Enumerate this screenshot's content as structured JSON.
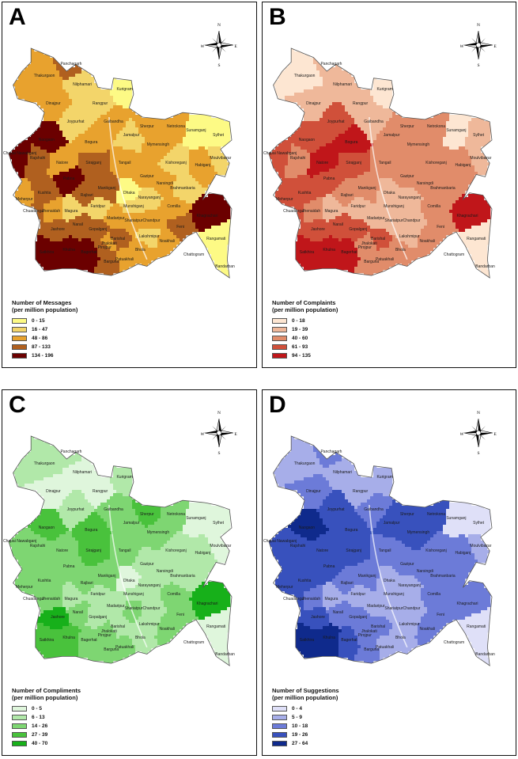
{
  "compass": {
    "north": "N",
    "south": "S",
    "east": "E",
    "west": "W"
  },
  "districts": [
    {
      "name": "Panchagarh",
      "fx": 0.28,
      "fy": 0.07
    },
    {
      "name": "Thakurgaon",
      "fx": 0.16,
      "fy": 0.12
    },
    {
      "name": "Nilphamari",
      "fx": 0.33,
      "fy": 0.16
    },
    {
      "name": "Dinajpur",
      "fx": 0.2,
      "fy": 0.24
    },
    {
      "name": "Rangpur",
      "fx": 0.41,
      "fy": 0.24
    },
    {
      "name": "Kurigram",
      "fx": 0.52,
      "fy": 0.18
    },
    {
      "name": "Gaibandha",
      "fx": 0.47,
      "fy": 0.32
    },
    {
      "name": "Joypurhat",
      "fx": 0.3,
      "fy": 0.32
    },
    {
      "name": "Naogaon",
      "fx": 0.17,
      "fy": 0.4
    },
    {
      "name": "Bogura",
      "fx": 0.37,
      "fy": 0.41
    },
    {
      "name": "Jamalpur",
      "fx": 0.55,
      "fy": 0.38
    },
    {
      "name": "Sherpur",
      "fx": 0.62,
      "fy": 0.34
    },
    {
      "name": "Netrokona",
      "fx": 0.75,
      "fy": 0.34
    },
    {
      "name": "Sunamganj",
      "fx": 0.84,
      "fy": 0.36
    },
    {
      "name": "Sylhet",
      "fx": 0.94,
      "fy": 0.38
    },
    {
      "name": "Mymensingh",
      "fx": 0.67,
      "fy": 0.42
    },
    {
      "name": "Chapai Nawabganj",
      "fx": 0.05,
      "fy": 0.46
    },
    {
      "name": "Rajshahi",
      "fx": 0.13,
      "fy": 0.48
    },
    {
      "name": "Natore",
      "fx": 0.24,
      "fy": 0.5
    },
    {
      "name": "Sirajganj",
      "fx": 0.38,
      "fy": 0.5
    },
    {
      "name": "Tangail",
      "fx": 0.52,
      "fy": 0.5
    },
    {
      "name": "Kishoreganj",
      "fx": 0.75,
      "fy": 0.5
    },
    {
      "name": "Habiganj",
      "fx": 0.87,
      "fy": 0.51
    },
    {
      "name": "Moulvibazar",
      "fx": 0.95,
      "fy": 0.48
    },
    {
      "name": "Pabna",
      "fx": 0.27,
      "fy": 0.57
    },
    {
      "name": "Gazipur",
      "fx": 0.62,
      "fy": 0.56
    },
    {
      "name": "Narsingdi",
      "fx": 0.7,
      "fy": 0.59
    },
    {
      "name": "Brahmanbaria",
      "fx": 0.78,
      "fy": 0.61
    },
    {
      "name": "Kushtia",
      "fx": 0.16,
      "fy": 0.63
    },
    {
      "name": "Manikganj",
      "fx": 0.44,
      "fy": 0.61
    },
    {
      "name": "Dhaka",
      "fx": 0.54,
      "fy": 0.63
    },
    {
      "name": "Narayanganj",
      "fx": 0.63,
      "fy": 0.65
    },
    {
      "name": "Meherpur",
      "fx": 0.07,
      "fy": 0.66
    },
    {
      "name": "Rajbari",
      "fx": 0.35,
      "fy": 0.64
    },
    {
      "name": "Faridpur",
      "fx": 0.4,
      "fy": 0.69
    },
    {
      "name": "Munshiganj",
      "fx": 0.56,
      "fy": 0.69
    },
    {
      "name": "Comilla",
      "fx": 0.74,
      "fy": 0.69
    },
    {
      "name": "Chuadanga",
      "fx": 0.11,
      "fy": 0.71
    },
    {
      "name": "Jhenaidah",
      "fx": 0.19,
      "fy": 0.71
    },
    {
      "name": "Magura",
      "fx": 0.28,
      "fy": 0.71
    },
    {
      "name": "Madaripur",
      "fx": 0.48,
      "fy": 0.74
    },
    {
      "name": "Shariatpur",
      "fx": 0.56,
      "fy": 0.75
    },
    {
      "name": "Chandpur",
      "fx": 0.64,
      "fy": 0.75
    },
    {
      "name": "Khagrachari",
      "fx": 0.89,
      "fy": 0.73
    },
    {
      "name": "Narail",
      "fx": 0.31,
      "fy": 0.77
    },
    {
      "name": "Gopalganj",
      "fx": 0.4,
      "fy": 0.79
    },
    {
      "name": "Jashore",
      "fx": 0.22,
      "fy": 0.79
    },
    {
      "name": "Lakshmipur",
      "fx": 0.63,
      "fy": 0.82
    },
    {
      "name": "Feni",
      "fx": 0.77,
      "fy": 0.78
    },
    {
      "name": "Noakhali",
      "fx": 0.71,
      "fy": 0.84
    },
    {
      "name": "Rangamati",
      "fx": 0.93,
      "fy": 0.83
    },
    {
      "name": "Satkhira",
      "fx": 0.17,
      "fy": 0.89
    },
    {
      "name": "Khulna",
      "fx": 0.27,
      "fy": 0.88
    },
    {
      "name": "Bagerhat",
      "fx": 0.36,
      "fy": 0.89
    },
    {
      "name": "Pirojpur",
      "fx": 0.43,
      "fy": 0.87
    },
    {
      "name": "Barishal",
      "fx": 0.49,
      "fy": 0.83
    },
    {
      "name": "Jhalokati",
      "fx": 0.45,
      "fy": 0.85
    },
    {
      "name": "Bhola",
      "fx": 0.59,
      "fy": 0.88
    },
    {
      "name": "Barguna",
      "fx": 0.46,
      "fy": 0.93
    },
    {
      "name": "Patuakhali",
      "fx": 0.52,
      "fy": 0.92
    },
    {
      "name": "Chattogram",
      "fx": 0.83,
      "fy": 0.9
    },
    {
      "name": "Bandarban",
      "fx": 0.97,
      "fy": 0.95
    }
  ],
  "panels": [
    {
      "id": "A",
      "legend_title_1": "Number of Messages",
      "legend_title_2": "(per million population)",
      "classes": [
        {
          "label": "0 - 15",
          "color": "#fdfa85"
        },
        {
          "label": "16 - 47",
          "color": "#f3d56a"
        },
        {
          "label": "48 - 86",
          "color": "#e8a22e"
        },
        {
          "label": "87 - 133",
          "color": "#b0601f"
        },
        {
          "label": "134 - 196",
          "color": "#6b0000"
        }
      ],
      "district_class": [
        3,
        2,
        1,
        2,
        1,
        0,
        2,
        1,
        4,
        2,
        1,
        2,
        2,
        0,
        0,
        2,
        4,
        3,
        2,
        3,
        2,
        1,
        2,
        1,
        4,
        2,
        2,
        1,
        3,
        3,
        0,
        1,
        2,
        3,
        1,
        1,
        2,
        3,
        2,
        1,
        2,
        2,
        2,
        4,
        3,
        3,
        3,
        1,
        3,
        2,
        0,
        4,
        4,
        4,
        3,
        3,
        2,
        2,
        3,
        2,
        1,
        0
      ]
    },
    {
      "id": "B",
      "legend_title_1": "Number of Complaints",
      "legend_title_2": "(per million population)",
      "classes": [
        {
          "label": "0 - 18",
          "color": "#fde6d2"
        },
        {
          "label": "19 - 39",
          "color": "#efb89a"
        },
        {
          "label": "40 - 60",
          "color": "#e18c6a"
        },
        {
          "label": "61 - 93",
          "color": "#d0503a"
        },
        {
          "label": "94 - 135",
          "color": "#c0161a"
        }
      ],
      "district_class": [
        1,
        0,
        1,
        1,
        1,
        0,
        1,
        3,
        3,
        4,
        2,
        2,
        2,
        0,
        1,
        2,
        3,
        2,
        4,
        3,
        2,
        2,
        2,
        1,
        3,
        2,
        2,
        2,
        3,
        2,
        1,
        1,
        3,
        2,
        1,
        1,
        2,
        3,
        2,
        1,
        1,
        1,
        1,
        4,
        3,
        3,
        3,
        1,
        2,
        2,
        0,
        4,
        4,
        4,
        2,
        3,
        2,
        2,
        2,
        2,
        1,
        0
      ]
    },
    {
      "id": "C",
      "legend_title_1": "Number of Compliments",
      "legend_title_2": "(per million population)",
      "classes": [
        {
          "label": "0 - 5",
          "color": "#dff6dc"
        },
        {
          "label": "6 - 13",
          "color": "#b1e8a9"
        },
        {
          "label": "14 - 26",
          "color": "#7ed672"
        },
        {
          "label": "27 - 39",
          "color": "#49c23c"
        },
        {
          "label": "40 - 70",
          "color": "#17b01a"
        }
      ],
      "district_class": [
        1,
        1,
        0,
        0,
        0,
        1,
        2,
        1,
        3,
        3,
        2,
        3,
        2,
        0,
        0,
        2,
        2,
        2,
        2,
        3,
        2,
        1,
        1,
        0,
        2,
        1,
        1,
        1,
        2,
        2,
        0,
        1,
        2,
        2,
        1,
        1,
        2,
        2,
        2,
        1,
        1,
        2,
        1,
        4,
        2,
        1,
        4,
        1,
        2,
        2,
        0,
        3,
        3,
        2,
        2,
        1,
        2,
        1,
        2,
        2,
        1,
        0
      ]
    },
    {
      "id": "D",
      "legend_title_1": "Number of Suggestions",
      "legend_title_2": "(per million population)",
      "classes": [
        {
          "label": "0 - 4",
          "color": "#dfe0f8"
        },
        {
          "label": "5 - 9",
          "color": "#a7aee9"
        },
        {
          "label": "10 - 18",
          "color": "#6c7bd8"
        },
        {
          "label": "19 - 26",
          "color": "#3851bd"
        },
        {
          "label": "27 - 64",
          "color": "#0f2a8c"
        }
      ],
      "district_class": [
        2,
        1,
        1,
        2,
        1,
        1,
        2,
        3,
        4,
        3,
        3,
        3,
        3,
        0,
        0,
        3,
        3,
        3,
        3,
        3,
        2,
        2,
        2,
        1,
        3,
        2,
        2,
        2,
        3,
        2,
        1,
        1,
        3,
        2,
        1,
        1,
        2,
        3,
        2,
        1,
        1,
        1,
        1,
        2,
        2,
        2,
        3,
        1,
        2,
        2,
        0,
        4,
        4,
        3,
        2,
        2,
        2,
        1,
        2,
        1,
        1,
        0
      ]
    }
  ]
}
